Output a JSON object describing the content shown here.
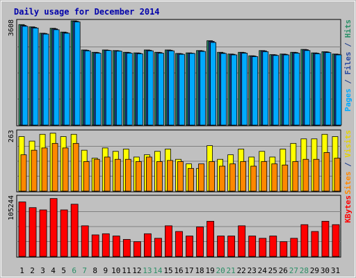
{
  "chart_data": {
    "type": "bar",
    "title": "Daily usage for December 2014",
    "categories": [
      "1",
      "2",
      "3",
      "4",
      "5",
      "6",
      "7",
      "8",
      "9",
      "10",
      "11",
      "12",
      "13",
      "14",
      "15",
      "16",
      "17",
      "18",
      "19",
      "20",
      "21",
      "22",
      "23",
      "24",
      "25",
      "26",
      "27",
      "28",
      "29",
      "30",
      "31"
    ],
    "weekend_days": [
      "6",
      "7",
      "13",
      "14",
      "20",
      "21",
      "27",
      "28"
    ],
    "panels": [
      {
        "id": "hits-files-pages",
        "max_label": "3608",
        "ymax": 3608,
        "legend": [
          {
            "text": "Pages",
            "color": "#00aaff"
          },
          {
            "text": " / ",
            "color": "#1a3a8a"
          },
          {
            "text": "Files",
            "color": "#2a4aa0"
          },
          {
            "text": " / ",
            "color": "#1a3a8a"
          },
          {
            "text": "Hits",
            "color": "#2a8f66"
          }
        ],
        "series": [
          {
            "name": "Hits",
            "color": "#2a8f66",
            "values": [
              3480,
              3400,
              3180,
              3350,
              3220,
              3608,
              2600,
              2520,
              2600,
              2580,
              2520,
              2500,
              2600,
              2520,
              2600,
              2480,
              2500,
              2580,
              2920,
              2520,
              2460,
              2520,
              2400,
              2580,
              2440,
              2460,
              2520,
              2620,
              2500,
              2540,
              2460
            ]
          },
          {
            "name": "Files",
            "color": "#1f3c8c",
            "values": [
              3450,
              3380,
              3170,
              3330,
              3200,
              3590,
              2590,
              2510,
              2590,
              2570,
              2510,
              2490,
              2590,
              2510,
              2590,
              2470,
              2490,
              2570,
              2900,
              2500,
              2450,
              2510,
              2390,
              2570,
              2430,
              2450,
              2510,
              2610,
              2490,
              2530,
              2450
            ]
          },
          {
            "name": "Pages",
            "color": "#00aaff",
            "values": [
              3420,
              3360,
              3150,
              3300,
              3180,
              3570,
              2570,
              2490,
              2580,
              2560,
              2490,
              2470,
              2570,
              2490,
              2570,
              2450,
              2480,
              2550,
              2860,
              2480,
              2430,
              2490,
              2370,
              2540,
              2410,
              2430,
              2490,
              2580,
              2470,
              2510,
              2430
            ]
          }
        ]
      },
      {
        "id": "visits-sites",
        "max_label": "263",
        "ymax": 263,
        "legend": [
          {
            "text": "Sites",
            "color": "#ff8800"
          },
          {
            "text": " / ",
            "color": "#1a3a8a"
          },
          {
            "text": "Visits",
            "color": "#e6d200"
          }
        ],
        "series": [
          {
            "name": "Visits",
            "color": "#ffff00",
            "values": [
              240,
              220,
              250,
              255,
              240,
              250,
              180,
              145,
              190,
              175,
              185,
              150,
              160,
              175,
              185,
              140,
              120,
              100,
              200,
              140,
              160,
              185,
              150,
              175,
              150,
              185,
              210,
              230,
              230,
              250,
              240
            ]
          },
          {
            "name": "Sites",
            "color": "#ff8800",
            "values": [
              160,
              180,
              190,
              210,
              190,
              210,
              130,
              140,
              150,
              140,
              140,
              130,
              150,
              130,
              135,
              130,
              100,
              120,
              130,
              110,
              120,
              130,
              110,
              130,
              120,
              115,
              130,
              140,
              140,
              170,
              145
            ]
          }
        ]
      },
      {
        "id": "kbytes",
        "max_label": "105244",
        "ymax": 105244,
        "legend": [
          {
            "text": "KBytes",
            "color": "#ff0000"
          }
        ],
        "series": [
          {
            "name": "KBytes",
            "color": "#ff0000",
            "values": [
              96000,
              86000,
              82000,
              102000,
              82000,
              92000,
              54000,
              38000,
              40000,
              36000,
              30000,
              26000,
              40000,
              32000,
              54000,
              44000,
              36000,
              52000,
              62000,
              36000,
              36000,
              54000,
              36000,
              32000,
              36000,
              26000,
              32000,
              56000,
              44000,
              62000,
              56000
            ]
          }
        ]
      }
    ]
  }
}
